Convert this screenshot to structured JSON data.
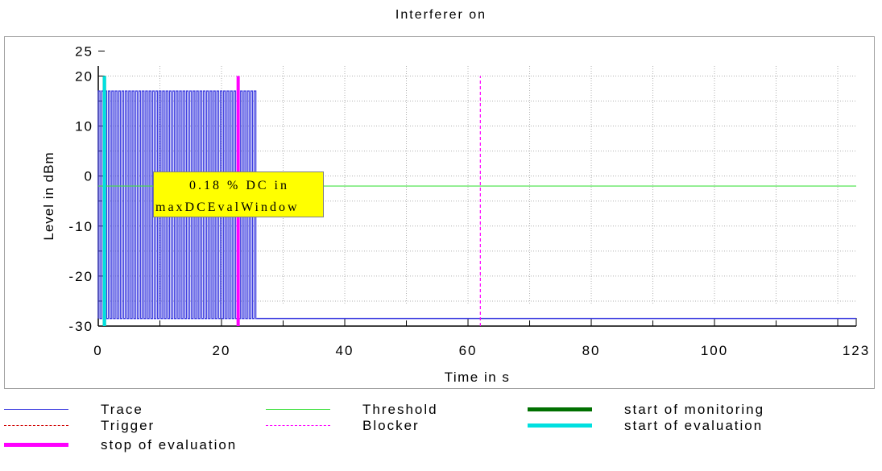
{
  "chart_data": {
    "type": "line",
    "title": "Interferer on",
    "xlabel": "Time in s",
    "ylabel": "Level in dBm",
    "xlim": [
      0,
      123
    ],
    "ylim": [
      -30,
      25
    ],
    "x_ticks": [
      "0",
      "20",
      "40",
      "60",
      "80",
      "100",
      "123"
    ],
    "y_ticks": [
      "25",
      "20",
      "10",
      "0",
      "-10",
      "-20",
      "-30"
    ],
    "grid": true,
    "annotation": {
      "line1": "0.18 % DC in",
      "line2": "maxDCEvalWindow"
    },
    "series": [
      {
        "name": "Trace",
        "color": "#4040e0",
        "style": "solid",
        "description_pulses": {
          "x_start": 0,
          "x_end": 25.7,
          "pulse_high": 17,
          "pulse_low": -28.5,
          "pulse_period": 0.55
        },
        "baseline": {
          "x": [
            25.7,
            123
          ],
          "y": [
            -28.5,
            -28.5
          ]
        }
      },
      {
        "name": "Threshold",
        "color": "#40e040",
        "style": "solid",
        "x": [
          0,
          123
        ],
        "y": [
          -2,
          -2
        ]
      },
      {
        "name": "start of monitoring",
        "color": "#007000",
        "style": "thick",
        "x": [
          1,
          1
        ],
        "y": [
          -30,
          20
        ]
      },
      {
        "name": "Trigger",
        "color": "#d00000",
        "style": "dashed",
        "x": [
          1,
          1
        ],
        "y": [
          -30,
          20
        ]
      },
      {
        "name": "start of evaluation",
        "color": "#00e0e0",
        "style": "thick",
        "x": [
          1,
          1
        ],
        "y": [
          -30,
          20
        ]
      },
      {
        "name": "stop of evaluation",
        "color": "#ff00ff",
        "style": "thick",
        "x": [
          22.7,
          22.7
        ],
        "y": [
          -30,
          20
        ]
      },
      {
        "name": "Blocker",
        "color": "#ff00ff",
        "style": "dashed",
        "x": [
          62,
          62
        ],
        "y": [
          -30,
          20
        ]
      }
    ]
  },
  "legend": [
    {
      "label": "Trace",
      "color": "#4040e0",
      "style": "solid"
    },
    {
      "label": "Threshold",
      "color": "#40e040",
      "style": "solid"
    },
    {
      "label": "start of monitoring",
      "color": "#007000",
      "style": "thick"
    },
    {
      "label": "Trigger",
      "color": "#d00000",
      "style": "dashed"
    },
    {
      "label": "Blocker",
      "color": "#ff00ff",
      "style": "dashed"
    },
    {
      "label": "start of evaluation",
      "color": "#00e0e0",
      "style": "thick"
    },
    {
      "label": "stop of evaluation",
      "color": "#ff00ff",
      "style": "thick"
    }
  ]
}
